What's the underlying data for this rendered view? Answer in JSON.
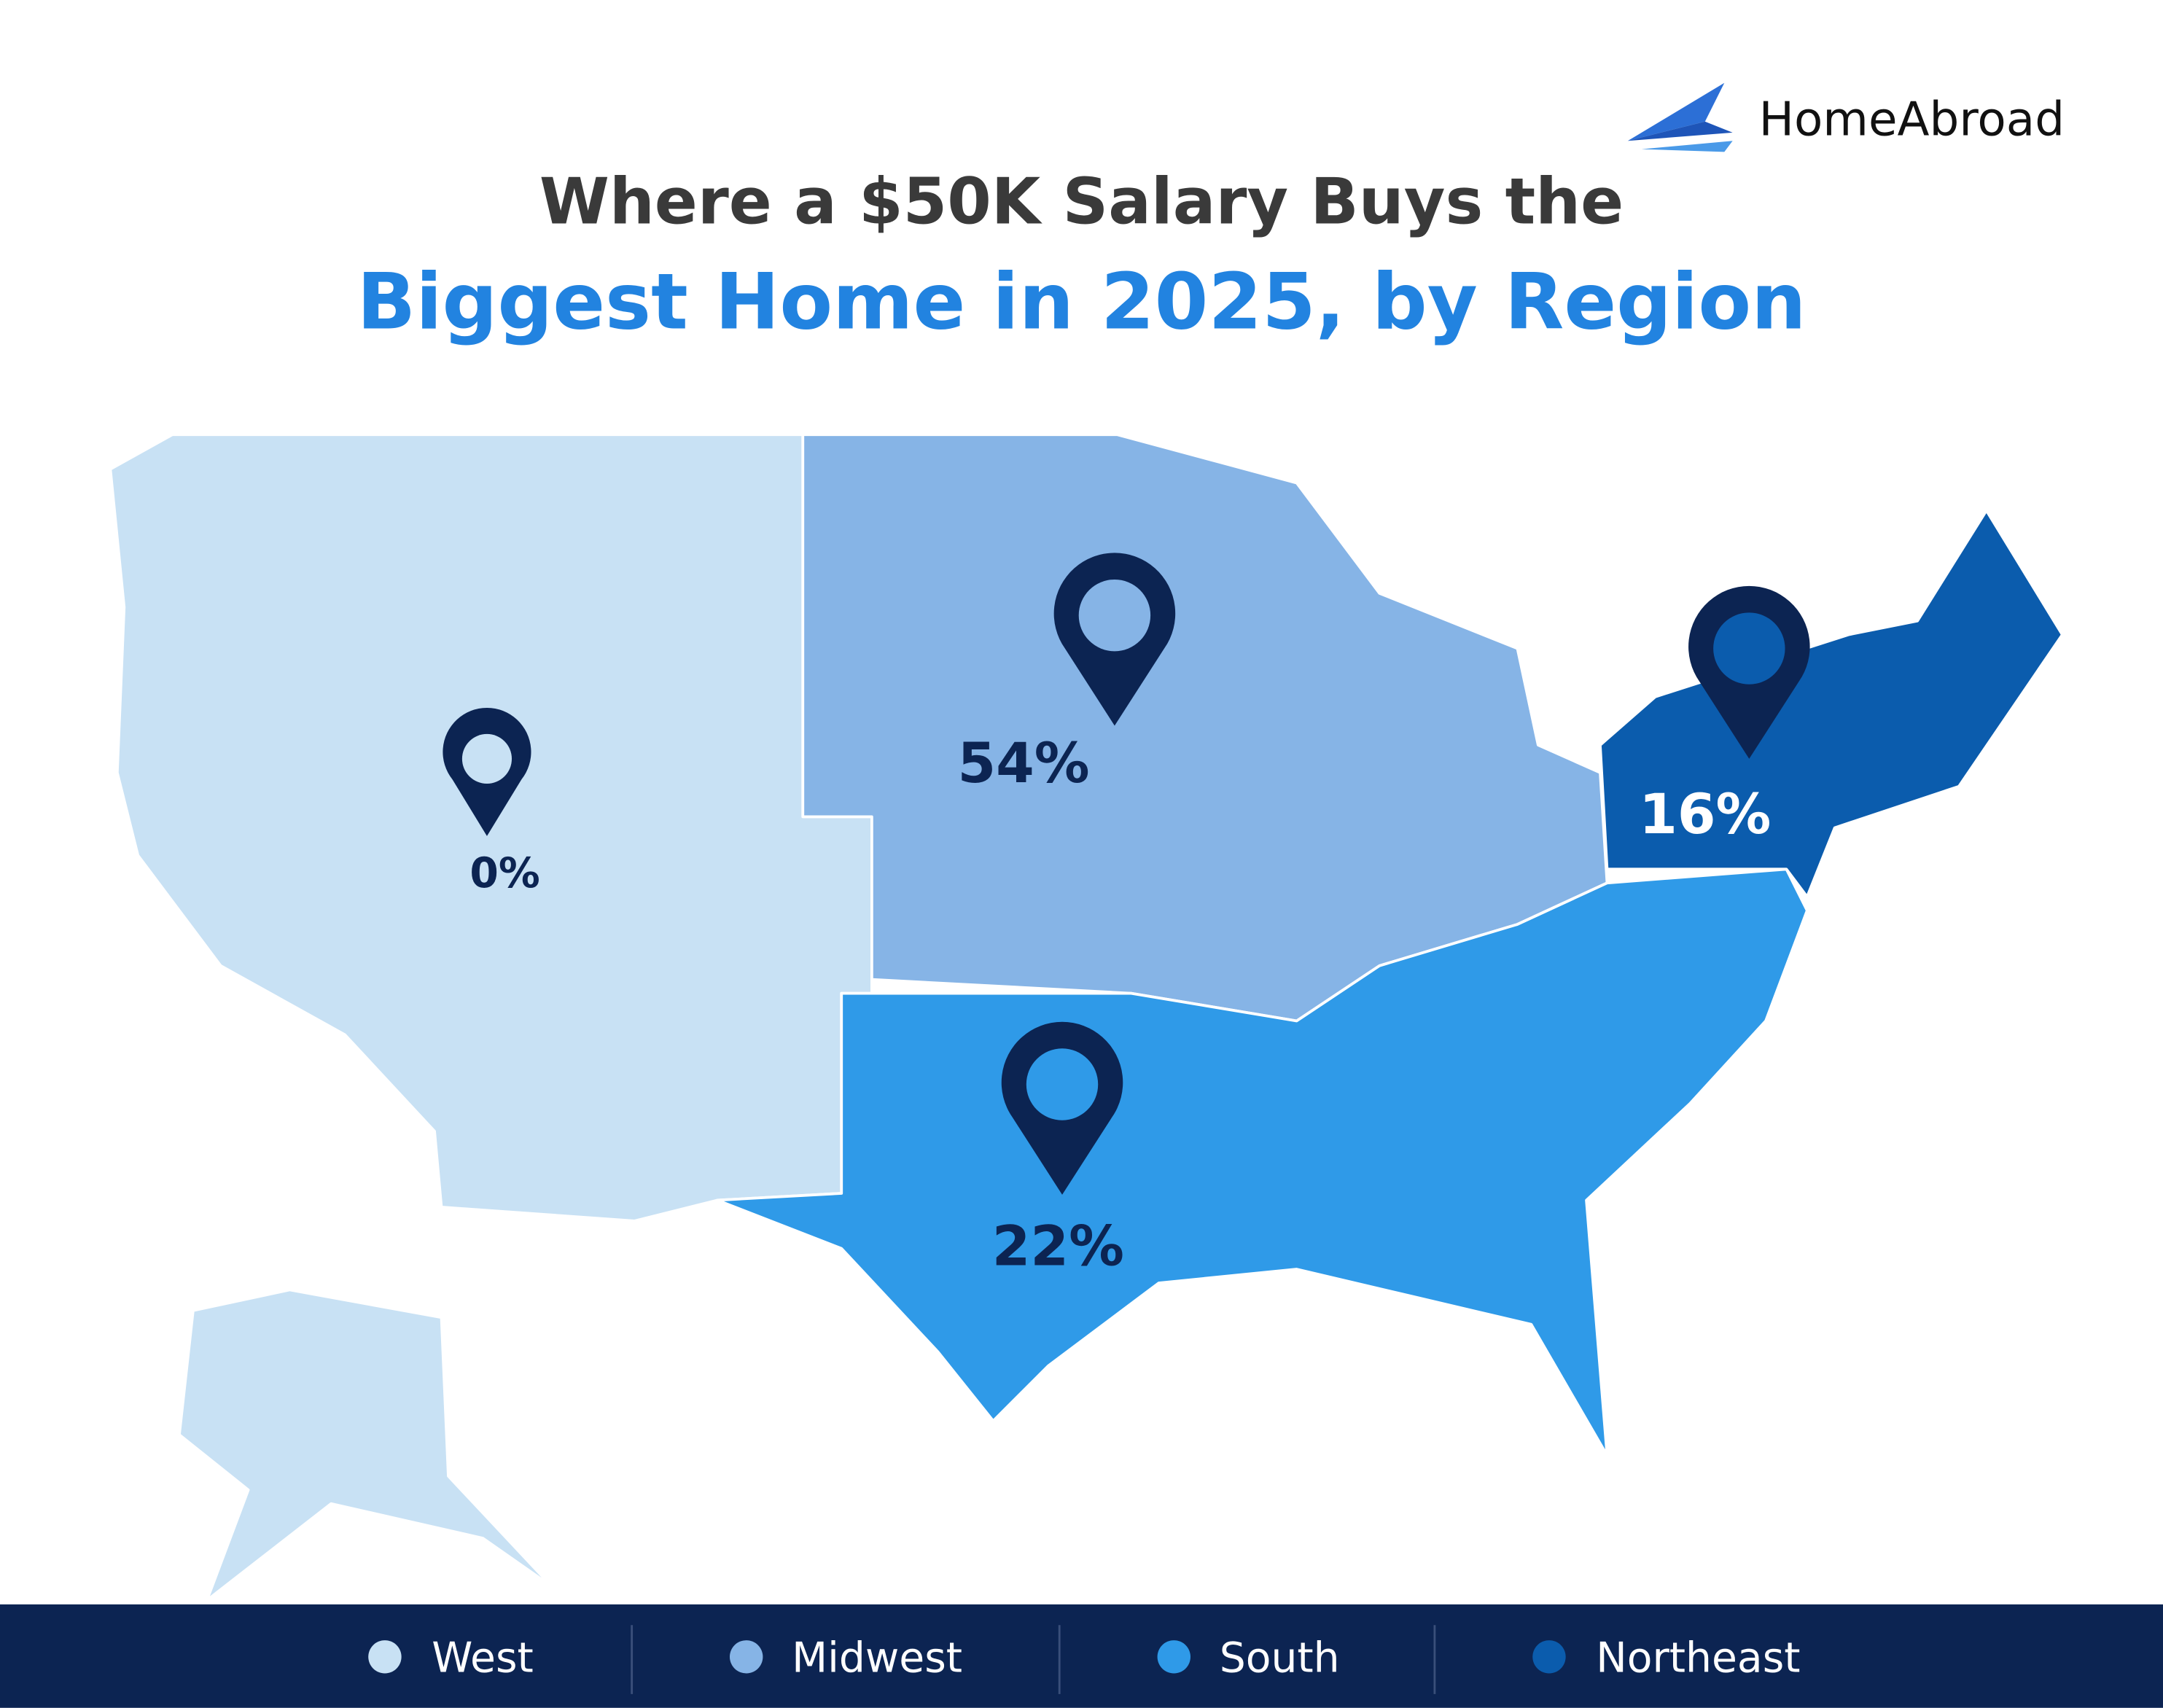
{
  "brand": "HomeAbroad",
  "title": {
    "line1": "Where a $50K Salary Buys the",
    "line2": "Biggest Home in 2025, by Region"
  },
  "regions": [
    {
      "name": "West",
      "share": "0%",
      "color": "#c8e1f4"
    },
    {
      "name": "Midwest",
      "share": "54%",
      "color": "#86b4e6"
    },
    {
      "name": "South",
      "share": "22%",
      "color": "#2f9ae8"
    },
    {
      "name": "Northeast",
      "share": "16%",
      "color": "#0b5cad"
    }
  ]
}
